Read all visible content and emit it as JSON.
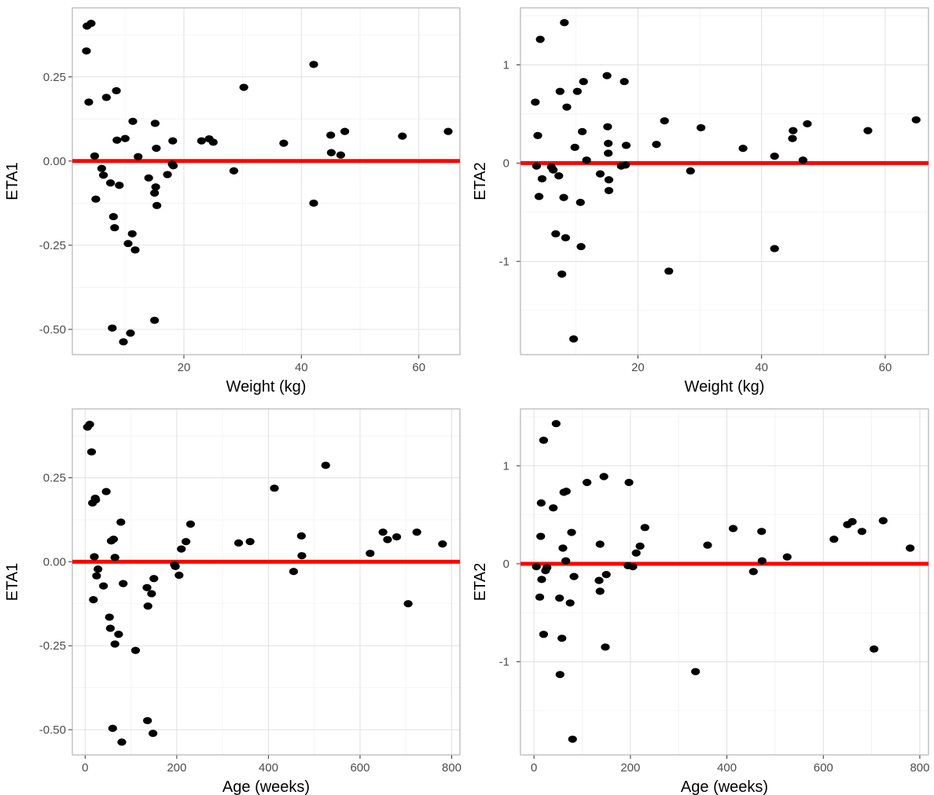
{
  "style": {
    "point_color": "#000000",
    "ref_line_color": "#ff0000",
    "grid_color": "#e0e0e0",
    "panel_border_color": "#b3b3b3"
  },
  "chart_data": [
    {
      "type": "scatter",
      "xlabel": "Weight (kg)",
      "ylabel": "ETA1",
      "xlim": [
        1,
        67
      ],
      "ylim": [
        -0.575,
        0.455
      ],
      "xticks": [
        20,
        40,
        60
      ],
      "xtick_labels": [
        "20",
        "40",
        "60"
      ],
      "yticks": [
        -0.5,
        -0.25,
        0,
        0.25
      ],
      "ytick_labels": [
        "-0.50",
        "-0.25",
        "0.00",
        "0.25"
      ],
      "grid": true,
      "reference_line": {
        "y": 0,
        "color": "#ff0000"
      },
      "points": [
        [
          3.4,
          0.327
        ],
        [
          3.5,
          0.401
        ],
        [
          4.2,
          0.409
        ],
        [
          3.8,
          0.175
        ],
        [
          4.8,
          0.015
        ],
        [
          5.0,
          -0.113
        ],
        [
          6.0,
          -0.022
        ],
        [
          6.3,
          -0.042
        ],
        [
          6.8,
          0.189
        ],
        [
          7.5,
          -0.065
        ],
        [
          8.0,
          -0.165
        ],
        [
          8.2,
          -0.198
        ],
        [
          8.5,
          0.209
        ],
        [
          8.6,
          0.062
        ],
        [
          9.0,
          -0.072
        ],
        [
          7.8,
          -0.496
        ],
        [
          9.7,
          -0.537
        ],
        [
          10.0,
          0.067
        ],
        [
          10.5,
          -0.245
        ],
        [
          10.9,
          -0.511
        ],
        [
          11.2,
          -0.216
        ],
        [
          11.3,
          0.118
        ],
        [
          11.7,
          -0.264
        ],
        [
          12.2,
          0.013
        ],
        [
          14.0,
          -0.05
        ],
        [
          15.0,
          -0.095
        ],
        [
          15.1,
          0.112
        ],
        [
          15.2,
          -0.077
        ],
        [
          15.3,
          0.038
        ],
        [
          15.4,
          -0.132
        ],
        [
          15.0,
          -0.473
        ],
        [
          17.2,
          -0.04
        ],
        [
          18.0,
          -0.009
        ],
        [
          18.1,
          0.06
        ],
        [
          18.2,
          -0.014
        ],
        [
          23.0,
          0.06
        ],
        [
          24.3,
          0.066
        ],
        [
          25.0,
          0.056
        ],
        [
          28.5,
          -0.029
        ],
        [
          30.2,
          0.219
        ],
        [
          37.0,
          0.053
        ],
        [
          42.1,
          0.287
        ],
        [
          42.1,
          -0.125
        ],
        [
          45.0,
          0.077
        ],
        [
          45.1,
          0.025
        ],
        [
          46.7,
          0.018
        ],
        [
          47.4,
          0.088
        ],
        [
          57.2,
          0.074
        ],
        [
          65.0,
          0.088
        ]
      ]
    },
    {
      "type": "scatter",
      "xlabel": "Weight (kg)",
      "ylabel": "ETA2",
      "xlim": [
        1,
        67
      ],
      "ylim": [
        -1.95,
        1.58
      ],
      "xticks": [
        20,
        40,
        60
      ],
      "xtick_labels": [
        "20",
        "40",
        "60"
      ],
      "yticks": [
        -1,
        0,
        1
      ],
      "ytick_labels": [
        "-1",
        "0",
        "1"
      ],
      "grid": true,
      "reference_line": {
        "y": 0,
        "color": "#ff0000"
      },
      "points": [
        [
          3.4,
          0.62
        ],
        [
          3.6,
          -0.03
        ],
        [
          3.8,
          0.28
        ],
        [
          4.0,
          -0.34
        ],
        [
          4.2,
          1.26
        ],
        [
          4.5,
          -0.16
        ],
        [
          6.0,
          -0.04
        ],
        [
          6.3,
          -0.07
        ],
        [
          6.7,
          -0.72
        ],
        [
          7.2,
          -0.13
        ],
        [
          7.4,
          0.73
        ],
        [
          7.7,
          -1.13
        ],
        [
          8.0,
          -0.35
        ],
        [
          8.1,
          1.43
        ],
        [
          8.3,
          -0.76
        ],
        [
          8.5,
          0.57
        ],
        [
          9.6,
          -1.79
        ],
        [
          9.8,
          0.16
        ],
        [
          10.2,
          0.73
        ],
        [
          10.7,
          -0.4
        ],
        [
          10.8,
          -0.85
        ],
        [
          11.0,
          0.32
        ],
        [
          11.2,
          0.83
        ],
        [
          11.7,
          0.03
        ],
        [
          13.9,
          -0.11
        ],
        [
          15.0,
          0.89
        ],
        [
          15.1,
          0.37
        ],
        [
          15.2,
          0.1
        ],
        [
          15.2,
          0.2
        ],
        [
          15.3,
          -0.17
        ],
        [
          15.3,
          -0.28
        ],
        [
          17.3,
          -0.03
        ],
        [
          17.8,
          0.83
        ],
        [
          18.0,
          -0.02
        ],
        [
          18.1,
          0.18
        ],
        [
          23.0,
          0.19
        ],
        [
          24.3,
          0.43
        ],
        [
          25.0,
          -1.1
        ],
        [
          28.5,
          -0.08
        ],
        [
          30.2,
          0.36
        ],
        [
          37.0,
          0.15
        ],
        [
          42.1,
          0.07
        ],
        [
          42.1,
          -0.87
        ],
        [
          45.0,
          0.25
        ],
        [
          45.1,
          0.33
        ],
        [
          46.7,
          0.03
        ],
        [
          47.4,
          0.4
        ],
        [
          57.2,
          0.33
        ],
        [
          65.0,
          0.44
        ]
      ]
    },
    {
      "type": "scatter",
      "xlabel": "Age (weeks)",
      "ylabel": "ETA1",
      "xlim": [
        -28,
        818
      ],
      "ylim": [
        -0.575,
        0.455
      ],
      "xticks": [
        0,
        200,
        400,
        600,
        800
      ],
      "xtick_labels": [
        "0",
        "200",
        "400",
        "600",
        "800"
      ],
      "yticks": [
        -0.5,
        -0.25,
        0,
        0.25
      ],
      "ytick_labels": [
        "-0.50",
        "-0.25",
        "0.00",
        "0.25"
      ],
      "grid": true,
      "reference_line": {
        "y": 0,
        "color": "#ff0000"
      },
      "points": [
        [
          5,
          0.401
        ],
        [
          10,
          0.409
        ],
        [
          14,
          0.327
        ],
        [
          16,
          0.175
        ],
        [
          18,
          -0.113
        ],
        [
          20,
          0.015
        ],
        [
          22,
          0.189
        ],
        [
          23,
          0.184
        ],
        [
          25,
          -0.042
        ],
        [
          28,
          -0.022
        ],
        [
          40,
          -0.072
        ],
        [
          46,
          0.209
        ],
        [
          53,
          -0.165
        ],
        [
          55,
          -0.198
        ],
        [
          57,
          0.062
        ],
        [
          60,
          -0.496
        ],
        [
          62,
          0.067
        ],
        [
          65,
          0.013
        ],
        [
          65,
          -0.245
        ],
        [
          73,
          -0.216
        ],
        [
          78,
          0.118
        ],
        [
          80,
          -0.537
        ],
        [
          83,
          -0.065
        ],
        [
          110,
          -0.264
        ],
        [
          135,
          -0.077
        ],
        [
          136,
          -0.473
        ],
        [
          137,
          -0.132
        ],
        [
          145,
          -0.095
        ],
        [
          148,
          -0.511
        ],
        [
          150,
          -0.05
        ],
        [
          195,
          -0.009
        ],
        [
          197,
          -0.014
        ],
        [
          205,
          -0.04
        ],
        [
          210,
          0.038
        ],
        [
          220,
          0.06
        ],
        [
          230,
          0.112
        ],
        [
          335,
          0.056
        ],
        [
          360,
          0.06
        ],
        [
          413,
          0.219
        ],
        [
          455,
          -0.029
        ],
        [
          472,
          0.077
        ],
        [
          473,
          0.018
        ],
        [
          525,
          0.287
        ],
        [
          622,
          0.025
        ],
        [
          650,
          0.088
        ],
        [
          660,
          0.066
        ],
        [
          680,
          0.074
        ],
        [
          705,
          -0.125
        ],
        [
          724,
          0.088
        ],
        [
          780,
          0.053
        ]
      ]
    },
    {
      "type": "scatter",
      "xlabel": "Age (weeks)",
      "ylabel": "ETA2",
      "xlim": [
        -28,
        818
      ],
      "ylim": [
        -1.95,
        1.58
      ],
      "xticks": [
        0,
        200,
        400,
        600,
        800
      ],
      "xtick_labels": [
        "0",
        "200",
        "400",
        "600",
        "800"
      ],
      "yticks": [
        -1,
        0,
        1
      ],
      "ytick_labels": [
        "-1",
        "0",
        "1"
      ],
      "grid": true,
      "reference_line": {
        "y": 0,
        "color": "#ff0000"
      },
      "points": [
        [
          5,
          -0.03
        ],
        [
          12,
          -0.34
        ],
        [
          14,
          0.28
        ],
        [
          15,
          0.62
        ],
        [
          16,
          -0.16
        ],
        [
          20,
          1.26
        ],
        [
          20,
          -0.72
        ],
        [
          24,
          -0.07
        ],
        [
          27,
          -0.04
        ],
        [
          40,
          0.57
        ],
        [
          46,
          1.43
        ],
        [
          53,
          -0.35
        ],
        [
          54,
          -1.13
        ],
        [
          58,
          -0.76
        ],
        [
          60,
          0.16
        ],
        [
          62,
          0.73
        ],
        [
          66,
          0.03
        ],
        [
          67,
          0.74
        ],
        [
          75,
          -0.4
        ],
        [
          78,
          0.32
        ],
        [
          80,
          -1.79
        ],
        [
          83,
          -0.13
        ],
        [
          110,
          0.83
        ],
        [
          135,
          -0.17
        ],
        [
          137,
          0.2
        ],
        [
          137,
          -0.28
        ],
        [
          145,
          0.89
        ],
        [
          148,
          -0.85
        ],
        [
          150,
          -0.11
        ],
        [
          195,
          -0.02
        ],
        [
          197,
          0.83
        ],
        [
          205,
          -0.03
        ],
        [
          212,
          0.11
        ],
        [
          220,
          0.18
        ],
        [
          230,
          0.37
        ],
        [
          335,
          -1.1
        ],
        [
          360,
          0.19
        ],
        [
          413,
          0.36
        ],
        [
          455,
          -0.08
        ],
        [
          472,
          0.33
        ],
        [
          473,
          0.03
        ],
        [
          525,
          0.07
        ],
        [
          622,
          0.25
        ],
        [
          650,
          0.4
        ],
        [
          660,
          0.43
        ],
        [
          680,
          0.33
        ],
        [
          705,
          -0.87
        ],
        [
          724,
          0.44
        ],
        [
          780,
          0.16
        ]
      ]
    }
  ]
}
